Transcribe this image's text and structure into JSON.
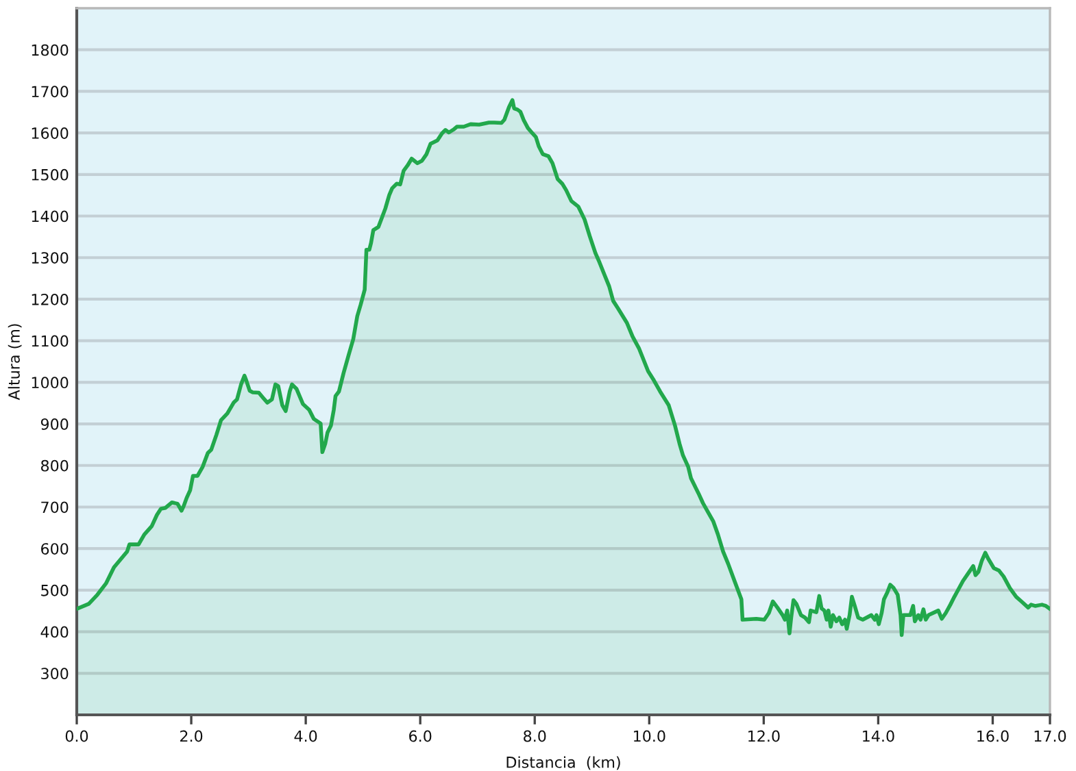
{
  "chart_data": {
    "type": "area",
    "xlabel": "Distancia  (km)",
    "ylabel": "Altura (m)",
    "xlim": [
      0,
      17
    ],
    "ylim": [
      200,
      1900
    ],
    "xticks": [
      {
        "value": 0,
        "label": "0.0"
      },
      {
        "value": 2,
        "label": "2.0"
      },
      {
        "value": 4,
        "label": "4.0"
      },
      {
        "value": 6,
        "label": "6.0"
      },
      {
        "value": 8,
        "label": "8.0"
      },
      {
        "value": 10,
        "label": "10.0"
      },
      {
        "value": 12,
        "label": "12.0"
      },
      {
        "value": 14,
        "label": "14.0"
      },
      {
        "value": 16,
        "label": "16.0"
      },
      {
        "value": 17,
        "label": "17.0"
      }
    ],
    "yticks": [
      300,
      400,
      500,
      600,
      700,
      800,
      900,
      1000,
      1100,
      1200,
      1300,
      1400,
      1500,
      1600,
      1700,
      1800
    ],
    "grid": "y",
    "line_style": "solid",
    "series": [
      {
        "color": "#22a84c",
        "x": [
          0.0,
          0.21,
          0.36,
          0.51,
          0.65,
          0.88,
          0.92,
          1.08,
          1.18,
          1.31,
          1.4,
          1.47,
          1.55,
          1.66,
          1.76,
          1.83,
          1.87,
          1.92,
          1.98,
          2.03,
          2.11,
          2.2,
          2.29,
          2.35,
          2.44,
          2.52,
          2.63,
          2.74,
          2.8,
          2.87,
          2.93,
          2.96,
          3.02,
          3.07,
          3.18,
          3.26,
          3.33,
          3.41,
          3.47,
          3.52,
          3.59,
          3.65,
          3.72,
          3.76,
          3.84,
          3.95,
          4.06,
          4.14,
          4.26,
          4.29,
          4.34,
          4.38,
          4.44,
          4.49,
          4.52,
          4.58,
          4.66,
          4.75,
          4.83,
          4.9,
          4.96,
          5.03,
          5.06,
          5.11,
          5.14,
          5.18,
          5.27,
          5.33,
          5.39,
          5.46,
          5.51,
          5.59,
          5.65,
          5.71,
          5.78,
          5.85,
          5.95,
          6.03,
          6.11,
          6.18,
          6.3,
          6.38,
          6.44,
          6.5,
          6.58,
          6.64,
          6.76,
          6.88,
          7.03,
          7.2,
          7.29,
          7.42,
          7.47,
          7.55,
          7.61,
          7.64,
          7.7,
          7.75,
          7.81,
          7.88,
          7.96,
          8.02,
          8.07,
          8.14,
          8.24,
          8.31,
          8.4,
          8.48,
          8.55,
          8.64,
          8.76,
          8.87,
          8.96,
          9.06,
          9.13,
          9.22,
          9.3,
          9.37,
          9.45,
          9.61,
          9.71,
          9.82,
          9.98,
          10.08,
          10.19,
          10.34,
          10.45,
          10.53,
          10.59,
          10.68,
          10.73,
          10.86,
          10.94,
          11.03,
          11.12,
          11.2,
          11.29,
          11.38,
          11.49,
          11.61,
          11.63,
          11.87,
          12.01,
          12.09,
          12.16,
          12.24,
          12.33,
          12.37,
          12.41,
          12.45,
          12.48,
          12.52,
          12.57,
          12.65,
          12.72,
          12.79,
          12.82,
          12.92,
          12.97,
          13.01,
          13.06,
          13.1,
          13.13,
          13.17,
          13.21,
          13.27,
          13.32,
          13.37,
          13.42,
          13.45,
          13.5,
          13.54,
          13.59,
          13.65,
          13.73,
          13.88,
          13.94,
          13.97,
          14.01,
          14.06,
          14.1,
          14.16,
          14.21,
          14.27,
          14.34,
          14.39,
          14.41,
          14.44,
          14.56,
          14.61,
          14.64,
          14.7,
          14.74,
          14.79,
          14.83,
          14.88,
          15.05,
          15.11,
          15.18,
          15.26,
          15.33,
          15.48,
          15.59,
          15.66,
          15.7,
          15.75,
          15.81,
          15.87,
          15.92,
          16.02,
          16.11,
          16.19,
          16.3,
          16.41,
          16.5,
          16.62,
          16.67,
          16.74,
          16.86,
          16.93,
          16.99
        ],
        "values": [
          455,
          467,
          489,
          516,
          555,
          593,
          610,
          610,
          634,
          654,
          681,
          696,
          698,
          711,
          708,
          691,
          703,
          722,
          740,
          775,
          775,
          797,
          830,
          838,
          874,
          909,
          925,
          951,
          959,
          995,
          1016,
          1005,
          980,
          976,
          975,
          962,
          951,
          959,
          995,
          991,
          945,
          931,
          978,
          995,
          984,
          948,
          934,
          912,
          901,
          832,
          852,
          879,
          896,
          934,
          967,
          978,
          1022,
          1066,
          1104,
          1159,
          1187,
          1223,
          1319,
          1319,
          1335,
          1366,
          1374,
          1396,
          1418,
          1451,
          1467,
          1478,
          1476,
          1509,
          1522,
          1538,
          1527,
          1533,
          1549,
          1574,
          1582,
          1599,
          1607,
          1601,
          1608,
          1615,
          1615,
          1621,
          1620,
          1625,
          1625,
          1624,
          1632,
          1662,
          1679,
          1659,
          1656,
          1651,
          1630,
          1612,
          1599,
          1590,
          1568,
          1549,
          1544,
          1527,
          1489,
          1478,
          1462,
          1436,
          1423,
          1392,
          1352,
          1311,
          1289,
          1258,
          1231,
          1196,
          1179,
          1143,
          1110,
          1082,
          1027,
          1005,
          978,
          945,
          896,
          852,
          824,
          797,
          769,
          733,
          709,
          687,
          665,
          634,
          593,
          563,
          522,
          478,
          429,
          431,
          429,
          445,
          473,
          458,
          440,
          429,
          451,
          396,
          434,
          476,
          467,
          440,
          434,
          423,
          451,
          447,
          486,
          456,
          451,
          429,
          451,
          412,
          440,
          425,
          434,
          418,
          429,
          407,
          440,
          484,
          462,
          434,
          429,
          440,
          429,
          440,
          418,
          445,
          478,
          495,
          513,
          505,
          489,
          440,
          392,
          440,
          440,
          462,
          425,
          440,
          429,
          454,
          429,
          440,
          451,
          431,
          445,
          465,
          484,
          522,
          544,
          558,
          536,
          544,
          571,
          590,
          576,
          553,
          547,
          533,
          505,
          484,
          473,
          458,
          465,
          462,
          465,
          462,
          456
        ]
      }
    ]
  }
}
